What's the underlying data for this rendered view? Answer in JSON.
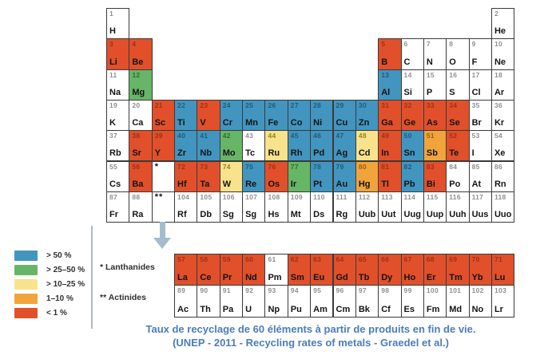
{
  "colors": {
    "blue": "#4295BF",
    "green": "#67B667",
    "yellow": "#F8E38C",
    "orange": "#F2A43C",
    "red": "#E1502B",
    "white": "#FFFFFF",
    "arrow": "#A3BCCE",
    "caption": "#4C7CBA"
  },
  "legend": {
    "items": [
      {
        "label": "> 50 %",
        "color": "blue"
      },
      {
        "label": "> 25–50 %",
        "color": "green"
      },
      {
        "label": "> 10–25 %",
        "color": "yellow"
      },
      {
        "label": "1–10 %",
        "color": "orange"
      },
      {
        "label": "< 1 %",
        "color": "red"
      }
    ]
  },
  "footnotes": {
    "lanthanides": "* Lanthanides",
    "actinides": "** Actinides"
  },
  "caption": {
    "line1": "Taux de recyclage de 60 éléments à partir de produits en fin de vie.",
    "line2": "(UNEP - 2011 - Recycling rates of metals - Graedel et al.)"
  },
  "periodic_table": {
    "main_cells": [
      {
        "n": "1",
        "sym": "H",
        "cat": "white",
        "row": 1,
        "col": 1
      },
      {
        "n": "2",
        "sym": "He",
        "cat": "white",
        "row": 1,
        "col": 18
      },
      {
        "n": "3",
        "sym": "Li",
        "cat": "red",
        "row": 2,
        "col": 1
      },
      {
        "n": "4",
        "sym": "Be",
        "cat": "red",
        "row": 2,
        "col": 2
      },
      {
        "n": "5",
        "sym": "B",
        "cat": "red",
        "row": 2,
        "col": 13
      },
      {
        "n": "6",
        "sym": "C",
        "cat": "white",
        "row": 2,
        "col": 14
      },
      {
        "n": "7",
        "sym": "N",
        "cat": "white",
        "row": 2,
        "col": 15
      },
      {
        "n": "8",
        "sym": "O",
        "cat": "white",
        "row": 2,
        "col": 16
      },
      {
        "n": "9",
        "sym": "F",
        "cat": "white",
        "row": 2,
        "col": 17
      },
      {
        "n": "10",
        "sym": "Ne",
        "cat": "white",
        "row": 2,
        "col": 18
      },
      {
        "n": "11",
        "sym": "Na",
        "cat": "white",
        "row": 3,
        "col": 1
      },
      {
        "n": "12",
        "sym": "Mg",
        "cat": "green",
        "row": 3,
        "col": 2
      },
      {
        "n": "13",
        "sym": "Al",
        "cat": "blue",
        "row": 3,
        "col": 13
      },
      {
        "n": "14",
        "sym": "Si",
        "cat": "white",
        "row": 3,
        "col": 14
      },
      {
        "n": "15",
        "sym": "P",
        "cat": "white",
        "row": 3,
        "col": 15
      },
      {
        "n": "16",
        "sym": "S",
        "cat": "white",
        "row": 3,
        "col": 16
      },
      {
        "n": "17",
        "sym": "Cl",
        "cat": "white",
        "row": 3,
        "col": 17
      },
      {
        "n": "18",
        "sym": "Ar",
        "cat": "white",
        "row": 3,
        "col": 18
      },
      {
        "n": "19",
        "sym": "K",
        "cat": "white",
        "row": 4,
        "col": 1
      },
      {
        "n": "20",
        "sym": "Ca",
        "cat": "white",
        "row": 4,
        "col": 2
      },
      {
        "n": "21",
        "sym": "Sc",
        "cat": "red",
        "row": 4,
        "col": 3
      },
      {
        "n": "22",
        "sym": "Ti",
        "cat": "blue",
        "row": 4,
        "col": 4
      },
      {
        "n": "23",
        "sym": "V",
        "cat": "red",
        "row": 4,
        "col": 5
      },
      {
        "n": "24",
        "sym": "Cr",
        "cat": "blue",
        "row": 4,
        "col": 6
      },
      {
        "n": "25",
        "sym": "Mn",
        "cat": "blue",
        "row": 4,
        "col": 7
      },
      {
        "n": "26",
        "sym": "Fe",
        "cat": "blue",
        "row": 4,
        "col": 8
      },
      {
        "n": "27",
        "sym": "Co",
        "cat": "blue",
        "row": 4,
        "col": 9
      },
      {
        "n": "28",
        "sym": "Ni",
        "cat": "blue",
        "row": 4,
        "col": 10
      },
      {
        "n": "29",
        "sym": "Cu",
        "cat": "blue",
        "row": 4,
        "col": 11
      },
      {
        "n": "30",
        "sym": "Zn",
        "cat": "blue",
        "row": 4,
        "col": 12
      },
      {
        "n": "31",
        "sym": "Ga",
        "cat": "red",
        "row": 4,
        "col": 13
      },
      {
        "n": "32",
        "sym": "Ge",
        "cat": "red",
        "row": 4,
        "col": 14
      },
      {
        "n": "33",
        "sym": "As",
        "cat": "red",
        "row": 4,
        "col": 15
      },
      {
        "n": "34",
        "sym": "Se",
        "cat": "red",
        "row": 4,
        "col": 16
      },
      {
        "n": "35",
        "sym": "Br",
        "cat": "white",
        "row": 4,
        "col": 17
      },
      {
        "n": "36",
        "sym": "Kr",
        "cat": "white",
        "row": 4,
        "col": 18
      },
      {
        "n": "37",
        "sym": "Rb",
        "cat": "white",
        "row": 5,
        "col": 1
      },
      {
        "n": "38",
        "sym": "Sr",
        "cat": "red",
        "row": 5,
        "col": 2
      },
      {
        "n": "39",
        "sym": "Y",
        "cat": "red",
        "row": 5,
        "col": 3
      },
      {
        "n": "40",
        "sym": "Zr",
        "cat": "blue",
        "row": 5,
        "col": 4
      },
      {
        "n": "41",
        "sym": "Nb",
        "cat": "blue",
        "row": 5,
        "col": 5
      },
      {
        "n": "42",
        "sym": "Mo",
        "cat": "green",
        "row": 5,
        "col": 6
      },
      {
        "n": "43",
        "sym": "Tc",
        "cat": "white",
        "row": 5,
        "col": 7
      },
      {
        "n": "44",
        "sym": "Ru",
        "cat": "yellow",
        "row": 5,
        "col": 8
      },
      {
        "n": "45",
        "sym": "Rh",
        "cat": "blue",
        "row": 5,
        "col": 9
      },
      {
        "n": "46",
        "sym": "Pd",
        "cat": "blue",
        "row": 5,
        "col": 10
      },
      {
        "n": "47",
        "sym": "Ag",
        "cat": "blue",
        "row": 5,
        "col": 11
      },
      {
        "n": "48",
        "sym": "Cd",
        "cat": "yellow",
        "row": 5,
        "col": 12
      },
      {
        "n": "49",
        "sym": "In",
        "cat": "red",
        "row": 5,
        "col": 13
      },
      {
        "n": "50",
        "sym": "Sn",
        "cat": "blue",
        "row": 5,
        "col": 14
      },
      {
        "n": "51",
        "sym": "Sb",
        "cat": "orange",
        "row": 5,
        "col": 15
      },
      {
        "n": "52",
        "sym": "Te",
        "cat": "red",
        "row": 5,
        "col": 16
      },
      {
        "n": "53",
        "sym": "I",
        "cat": "white",
        "row": 5,
        "col": 17
      },
      {
        "n": "54",
        "sym": "Xe",
        "cat": "white",
        "row": 5,
        "col": 18
      },
      {
        "n": "55",
        "sym": "Cs",
        "cat": "white",
        "row": 6,
        "col": 1
      },
      {
        "n": "56",
        "sym": "Ba",
        "cat": "red",
        "row": 6,
        "col": 2
      },
      {
        "n": "*",
        "sym": "",
        "cat": "white",
        "row": 6,
        "col": 3,
        "marker": true
      },
      {
        "n": "72",
        "sym": "Hf",
        "cat": "red",
        "row": 6,
        "col": 4
      },
      {
        "n": "73",
        "sym": "Ta",
        "cat": "red",
        "row": 6,
        "col": 5
      },
      {
        "n": "74",
        "sym": "W",
        "cat": "yellow",
        "row": 6,
        "col": 6
      },
      {
        "n": "75",
        "sym": "Re",
        "cat": "blue",
        "row": 6,
        "col": 7
      },
      {
        "n": "76",
        "sym": "Os",
        "cat": "red",
        "row": 6,
        "col": 8
      },
      {
        "n": "77",
        "sym": "Ir",
        "cat": "green",
        "row": 6,
        "col": 9
      },
      {
        "n": "78",
        "sym": "Pt",
        "cat": "blue",
        "row": 6,
        "col": 10
      },
      {
        "n": "79",
        "sym": "Au",
        "cat": "blue",
        "row": 6,
        "col": 11
      },
      {
        "n": "80",
        "sym": "Hg",
        "cat": "orange",
        "row": 6,
        "col": 12
      },
      {
        "n": "81",
        "sym": "Tl",
        "cat": "red",
        "row": 6,
        "col": 13
      },
      {
        "n": "82",
        "sym": "Pb",
        "cat": "blue",
        "row": 6,
        "col": 14
      },
      {
        "n": "83",
        "sym": "Bi",
        "cat": "red",
        "row": 6,
        "col": 15
      },
      {
        "n": "84",
        "sym": "Po",
        "cat": "white",
        "row": 6,
        "col": 16
      },
      {
        "n": "85",
        "sym": "At",
        "cat": "white",
        "row": 6,
        "col": 17
      },
      {
        "n": "86",
        "sym": "Rn",
        "cat": "white",
        "row": 6,
        "col": 18
      },
      {
        "n": "87",
        "sym": "Fr",
        "cat": "white",
        "row": 7,
        "col": 1
      },
      {
        "n": "88",
        "sym": "Ra",
        "cat": "white",
        "row": 7,
        "col": 2
      },
      {
        "n": "**",
        "sym": "",
        "cat": "white",
        "row": 7,
        "col": 3,
        "marker": true
      },
      {
        "n": "104",
        "sym": "Rf",
        "cat": "white",
        "row": 7,
        "col": 4
      },
      {
        "n": "105",
        "sym": "Db",
        "cat": "white",
        "row": 7,
        "col": 5
      },
      {
        "n": "106",
        "sym": "Sg",
        "cat": "white",
        "row": 7,
        "col": 6
      },
      {
        "n": "107",
        "sym": "Sg",
        "cat": "white",
        "row": 7,
        "col": 7
      },
      {
        "n": "108",
        "sym": "Hs",
        "cat": "white",
        "row": 7,
        "col": 8
      },
      {
        "n": "109",
        "sym": "Mt",
        "cat": "white",
        "row": 7,
        "col": 9
      },
      {
        "n": "110",
        "sym": "Ds",
        "cat": "white",
        "row": 7,
        "col": 10
      },
      {
        "n": "111",
        "sym": "Rg",
        "cat": "white",
        "row": 7,
        "col": 11
      },
      {
        "n": "112",
        "sym": "Uub",
        "cat": "white",
        "row": 7,
        "col": 12
      },
      {
        "n": "113",
        "sym": "Uut",
        "cat": "white",
        "row": 7,
        "col": 13
      },
      {
        "n": "114",
        "sym": "Uug",
        "cat": "white",
        "row": 7,
        "col": 14
      },
      {
        "n": "115",
        "sym": "Uup",
        "cat": "white",
        "row": 7,
        "col": 15
      },
      {
        "n": "116",
        "sym": "Uuh",
        "cat": "white",
        "row": 7,
        "col": 16
      },
      {
        "n": "117",
        "sym": "Uus",
        "cat": "white",
        "row": 7,
        "col": 17
      },
      {
        "n": "118",
        "sym": "Uuo",
        "cat": "white",
        "row": 7,
        "col": 18
      }
    ],
    "lanthanides": [
      {
        "n": "57",
        "sym": "La",
        "cat": "red"
      },
      {
        "n": "58",
        "sym": "Ce",
        "cat": "red"
      },
      {
        "n": "59",
        "sym": "Pr",
        "cat": "red"
      },
      {
        "n": "60",
        "sym": "Nd",
        "cat": "red"
      },
      {
        "n": "61",
        "sym": "Pm",
        "cat": "white"
      },
      {
        "n": "62",
        "sym": "Sm",
        "cat": "red"
      },
      {
        "n": "63",
        "sym": "Eu",
        "cat": "red"
      },
      {
        "n": "64",
        "sym": "Gd",
        "cat": "red"
      },
      {
        "n": "65",
        "sym": "Tb",
        "cat": "red"
      },
      {
        "n": "66",
        "sym": "Dy",
        "cat": "red"
      },
      {
        "n": "67",
        "sym": "Ho",
        "cat": "red"
      },
      {
        "n": "68",
        "sym": "Er",
        "cat": "red"
      },
      {
        "n": "69",
        "sym": "Tm",
        "cat": "red"
      },
      {
        "n": "70",
        "sym": "Yb",
        "cat": "red"
      },
      {
        "n": "71",
        "sym": "Lu",
        "cat": "red"
      }
    ],
    "actinides": [
      {
        "n": "89",
        "sym": "Ac",
        "cat": "white"
      },
      {
        "n": "90",
        "sym": "Th",
        "cat": "white"
      },
      {
        "n": "91",
        "sym": "Pa",
        "cat": "white"
      },
      {
        "n": "92",
        "sym": "U",
        "cat": "white"
      },
      {
        "n": "93",
        "sym": "Np",
        "cat": "white"
      },
      {
        "n": "94",
        "sym": "Pu",
        "cat": "white"
      },
      {
        "n": "95",
        "sym": "Am",
        "cat": "white"
      },
      {
        "n": "96",
        "sym": "Cm",
        "cat": "white"
      },
      {
        "n": "97",
        "sym": "Bk",
        "cat": "white"
      },
      {
        "n": "98",
        "sym": "Cf",
        "cat": "white"
      },
      {
        "n": "99",
        "sym": "Es",
        "cat": "white"
      },
      {
        "n": "100",
        "sym": "Fm",
        "cat": "white"
      },
      {
        "n": "101",
        "sym": "Md",
        "cat": "white"
      },
      {
        "n": "102",
        "sym": "No",
        "cat": "white"
      },
      {
        "n": "103",
        "sym": "Lr",
        "cat": "white"
      }
    ]
  }
}
